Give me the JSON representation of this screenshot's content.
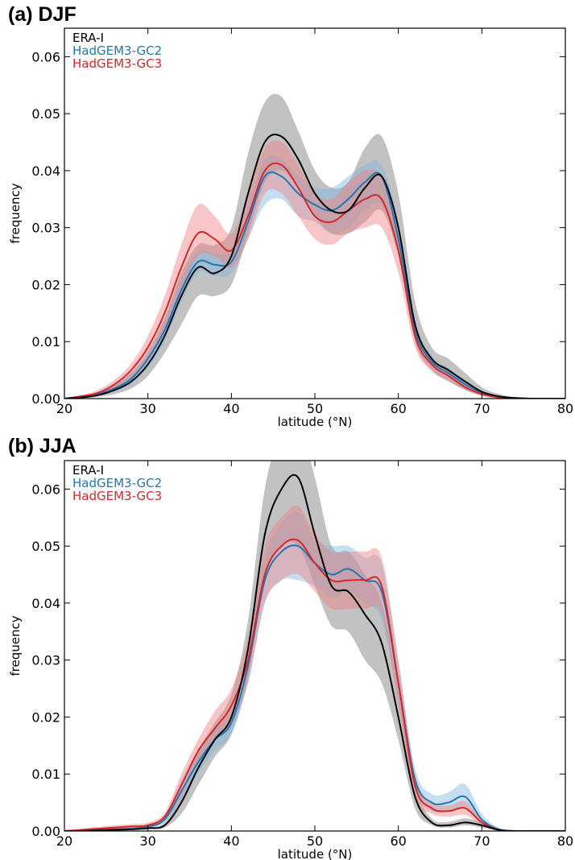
{
  "chart_data": [
    {
      "type": "line",
      "title": "(a) DJF",
      "xlabel": "latitude (°N)",
      "ylabel": "frequency",
      "xlim": [
        20,
        80
      ],
      "ylim": [
        0,
        0.065
      ],
      "xticks": [
        20,
        30,
        40,
        50,
        60,
        70,
        80
      ],
      "xtick_labels": [
        "20",
        "30",
        "40",
        "50",
        "60",
        "70",
        "80"
      ],
      "yticks": [
        0,
        0.01,
        0.02,
        0.03,
        0.04,
        0.05,
        0.06
      ],
      "ytick_labels": [
        "0.00",
        "0.01",
        "0.02",
        "0.03",
        "0.04",
        "0.05",
        "0.06"
      ],
      "grid": false,
      "legend_position": "top-left",
      "series": [
        {
          "name": "ERA-I",
          "color": "#000000",
          "band_color": "#777777",
          "x": [
            20,
            22,
            24,
            26,
            28,
            30,
            32,
            34,
            36,
            38,
            40,
            42,
            44,
            46,
            48,
            50,
            52,
            54,
            56,
            58,
            60,
            62,
            64,
            66,
            68,
            70,
            72,
            74,
            76,
            78,
            80
          ],
          "y": [
            0,
            0.0002,
            0.0006,
            0.0015,
            0.003,
            0.006,
            0.011,
            0.018,
            0.023,
            0.022,
            0.025,
            0.036,
            0.045,
            0.046,
            0.042,
            0.036,
            0.033,
            0.033,
            0.037,
            0.039,
            0.03,
            0.013,
            0.007,
            0.005,
            0.003,
            0.0012,
            0.0004,
            0.0001,
            0,
            0,
            0
          ],
          "lower": [
            0,
            0.0001,
            0.0003,
            0.0008,
            0.0018,
            0.004,
            0.008,
            0.013,
            0.018,
            0.018,
            0.02,
            0.029,
            0.038,
            0.04,
            0.037,
            0.032,
            0.029,
            0.029,
            0.031,
            0.033,
            0.025,
            0.01,
            0.005,
            0.003,
            0.0015,
            0.0005,
            0.0001,
            0,
            0,
            0,
            0
          ],
          "upper": [
            0,
            0.0004,
            0.001,
            0.0023,
            0.0045,
            0.008,
            0.014,
            0.022,
            0.027,
            0.027,
            0.03,
            0.043,
            0.052,
            0.053,
            0.047,
            0.04,
            0.037,
            0.038,
            0.044,
            0.046,
            0.036,
            0.017,
            0.009,
            0.007,
            0.0045,
            0.002,
            0.0008,
            0.0002,
            0,
            0,
            0
          ]
        },
        {
          "name": "HadGEM3-GC2",
          "color": "#1f77b4",
          "band_color": "#7fb6e0",
          "x": [
            20,
            22,
            24,
            26,
            28,
            30,
            32,
            34,
            36,
            38,
            40,
            42,
            44,
            46,
            48,
            50,
            52,
            54,
            56,
            58,
            60,
            62,
            64,
            66,
            68,
            70,
            72,
            74,
            76,
            78,
            80
          ],
          "y": [
            0,
            0.0003,
            0.0008,
            0.0018,
            0.0035,
            0.007,
            0.012,
            0.019,
            0.024,
            0.0235,
            0.024,
            0.031,
            0.039,
            0.039,
            0.036,
            0.034,
            0.033,
            0.035,
            0.038,
            0.039,
            0.028,
            0.012,
            0.0065,
            0.0045,
            0.0025,
            0.001,
            0.0003,
            0.0001,
            0,
            0,
            0
          ],
          "lower": [
            0,
            0.0002,
            0.0005,
            0.0012,
            0.0025,
            0.0055,
            0.01,
            0.017,
            0.022,
            0.0215,
            0.022,
            0.028,
            0.034,
            0.035,
            0.032,
            0.031,
            0.029,
            0.03,
            0.033,
            0.034,
            0.025,
            0.0105,
            0.0055,
            0.0038,
            0.002,
            0.0008,
            0.0002,
            0,
            0,
            0,
            0
          ],
          "upper": [
            0,
            0.0005,
            0.0012,
            0.0025,
            0.0045,
            0.0085,
            0.014,
            0.021,
            0.026,
            0.0255,
            0.026,
            0.034,
            0.042,
            0.042,
            0.039,
            0.037,
            0.037,
            0.039,
            0.041,
            0.041,
            0.031,
            0.0135,
            0.0075,
            0.0052,
            0.003,
            0.0013,
            0.0005,
            0.0001,
            0,
            0,
            0
          ]
        },
        {
          "name": "HadGEM3-GC3",
          "color": "#d62728",
          "band_color": "#f08080",
          "x": [
            20,
            22,
            24,
            26,
            28,
            30,
            32,
            34,
            36,
            38,
            40,
            42,
            44,
            46,
            48,
            50,
            52,
            54,
            56,
            58,
            60,
            62,
            64,
            66,
            68,
            70,
            72,
            74,
            76,
            78,
            80
          ],
          "y": [
            0,
            0.0004,
            0.001,
            0.0025,
            0.005,
            0.009,
            0.015,
            0.023,
            0.029,
            0.028,
            0.026,
            0.032,
            0.04,
            0.041,
            0.037,
            0.032,
            0.031,
            0.033,
            0.035,
            0.035,
            0.026,
            0.011,
            0.006,
            0.004,
            0.002,
            0.0008,
            0.0002,
            0,
            0,
            0,
            0
          ],
          "lower": [
            0,
            0.0003,
            0.0007,
            0.0018,
            0.0038,
            0.007,
            0.012,
            0.019,
            0.025,
            0.025,
            0.023,
            0.028,
            0.036,
            0.036,
            0.032,
            0.028,
            0.027,
            0.029,
            0.03,
            0.03,
            0.022,
            0.009,
            0.0048,
            0.0032,
            0.0015,
            0.0005,
            0.0001,
            0,
            0,
            0,
            0
          ],
          "upper": [
            0,
            0.0006,
            0.0015,
            0.0033,
            0.0062,
            0.011,
            0.018,
            0.027,
            0.034,
            0.032,
            0.029,
            0.036,
            0.044,
            0.045,
            0.041,
            0.036,
            0.035,
            0.038,
            0.04,
            0.039,
            0.03,
            0.013,
            0.0072,
            0.0048,
            0.0026,
            0.0011,
            0.0004,
            0.0001,
            0,
            0,
            0
          ]
        }
      ]
    },
    {
      "type": "line",
      "title": "(b) JJA",
      "xlabel": "latitude (°N)",
      "ylabel": "frequency",
      "xlim": [
        20,
        80
      ],
      "ylim": [
        0,
        0.065
      ],
      "xticks": [
        20,
        30,
        40,
        50,
        60,
        70,
        80
      ],
      "xtick_labels": [
        "20",
        "30",
        "40",
        "50",
        "60",
        "70",
        "80"
      ],
      "yticks": [
        0,
        0.01,
        0.02,
        0.03,
        0.04,
        0.05,
        0.06
      ],
      "ytick_labels": [
        "0.00",
        "0.01",
        "0.02",
        "0.03",
        "0.04",
        "0.05",
        "0.06"
      ],
      "grid": false,
      "legend_position": "top-left",
      "series": [
        {
          "name": "ERA-I",
          "color": "#000000",
          "band_color": "#777777",
          "x": [
            20,
            22,
            24,
            26,
            28,
            30,
            32,
            34,
            36,
            38,
            40,
            42,
            44,
            46,
            48,
            50,
            52,
            54,
            56,
            58,
            60,
            62,
            64,
            66,
            68,
            70,
            72,
            74,
            76,
            78,
            80
          ],
          "y": [
            0,
            0,
            0.0001,
            0.0002,
            0.0003,
            0.0005,
            0.001,
            0.005,
            0.011,
            0.016,
            0.02,
            0.032,
            0.052,
            0.06,
            0.062,
            0.052,
            0.043,
            0.042,
            0.038,
            0.033,
            0.02,
            0.006,
            0.0015,
            0.001,
            0.0015,
            0.001,
            0.0002,
            0,
            0,
            0,
            0
          ],
          "lower": [
            0,
            0,
            0,
            0.0001,
            0.0002,
            0.0003,
            0.0006,
            0.003,
            0.008,
            0.013,
            0.017,
            0.027,
            0.044,
            0.05,
            0.05,
            0.043,
            0.036,
            0.035,
            0.03,
            0.026,
            0.016,
            0.004,
            0.001,
            0.0006,
            0.001,
            0.0006,
            0.0001,
            0,
            0,
            0,
            0
          ],
          "upper": [
            0,
            0,
            0.0002,
            0.0004,
            0.0005,
            0.0008,
            0.0015,
            0.007,
            0.014,
            0.019,
            0.024,
            0.037,
            0.06,
            0.07,
            0.072,
            0.062,
            0.05,
            0.049,
            0.045,
            0.04,
            0.025,
            0.008,
            0.0022,
            0.0016,
            0.0022,
            0.0015,
            0.0004,
            0,
            0,
            0,
            0
          ]
        },
        {
          "name": "HadGEM3-GC2",
          "color": "#1f77b4",
          "band_color": "#7fb6e0",
          "x": [
            20,
            22,
            24,
            26,
            28,
            30,
            32,
            34,
            36,
            38,
            40,
            42,
            44,
            46,
            48,
            50,
            52,
            54,
            56,
            58,
            60,
            62,
            64,
            66,
            68,
            70,
            72,
            74,
            76,
            78,
            80
          ],
          "y": [
            0,
            0.0001,
            0.0002,
            0.0003,
            0.0004,
            0.0008,
            0.002,
            0.007,
            0.012,
            0.016,
            0.019,
            0.029,
            0.044,
            0.049,
            0.05,
            0.047,
            0.045,
            0.046,
            0.044,
            0.042,
            0.026,
            0.009,
            0.005,
            0.005,
            0.006,
            0.002,
            0.0003,
            0,
            0,
            0,
            0
          ],
          "lower": [
            0,
            0,
            0.0001,
            0.0002,
            0.0003,
            0.0005,
            0.0015,
            0.005,
            0.01,
            0.014,
            0.017,
            0.026,
            0.04,
            0.044,
            0.044,
            0.043,
            0.041,
            0.042,
            0.04,
            0.037,
            0.023,
            0.007,
            0.0035,
            0.0035,
            0.004,
            0.0012,
            0.0001,
            0,
            0,
            0,
            0
          ],
          "upper": [
            0,
            0.0002,
            0.0004,
            0.0005,
            0.0007,
            0.0012,
            0.0028,
            0.009,
            0.014,
            0.018,
            0.021,
            0.032,
            0.048,
            0.054,
            0.056,
            0.051,
            0.05,
            0.05,
            0.048,
            0.047,
            0.03,
            0.011,
            0.0065,
            0.0068,
            0.0082,
            0.003,
            0.0006,
            0,
            0,
            0,
            0
          ]
        },
        {
          "name": "HadGEM3-GC3",
          "color": "#d62728",
          "band_color": "#f08080",
          "x": [
            20,
            22,
            24,
            26,
            28,
            30,
            32,
            34,
            36,
            38,
            40,
            42,
            44,
            46,
            48,
            50,
            52,
            54,
            56,
            58,
            60,
            62,
            64,
            66,
            68,
            70,
            72,
            74,
            76,
            78,
            80
          ],
          "y": [
            0,
            0.0002,
            0.0004,
            0.0006,
            0.0008,
            0.001,
            0.0025,
            0.008,
            0.014,
            0.018,
            0.022,
            0.03,
            0.045,
            0.05,
            0.051,
            0.047,
            0.044,
            0.044,
            0.044,
            0.043,
            0.026,
            0.008,
            0.004,
            0.0035,
            0.004,
            0.0015,
            0.0002,
            0,
            0,
            0,
            0
          ],
          "lower": [
            0,
            0.0001,
            0.0002,
            0.0003,
            0.0005,
            0.0006,
            0.0018,
            0.006,
            0.012,
            0.016,
            0.019,
            0.026,
            0.04,
            0.044,
            0.045,
            0.042,
            0.039,
            0.039,
            0.039,
            0.038,
            0.022,
            0.006,
            0.003,
            0.0025,
            0.0028,
            0.001,
            0.0001,
            0,
            0,
            0,
            0
          ],
          "upper": [
            0,
            0.0004,
            0.0007,
            0.001,
            0.0012,
            0.0015,
            0.0032,
            0.01,
            0.016,
            0.021,
            0.025,
            0.034,
            0.05,
            0.055,
            0.057,
            0.052,
            0.049,
            0.049,
            0.049,
            0.048,
            0.03,
            0.01,
            0.005,
            0.0045,
            0.0052,
            0.002,
            0.0004,
            0,
            0,
            0,
            0
          ]
        }
      ]
    }
  ]
}
